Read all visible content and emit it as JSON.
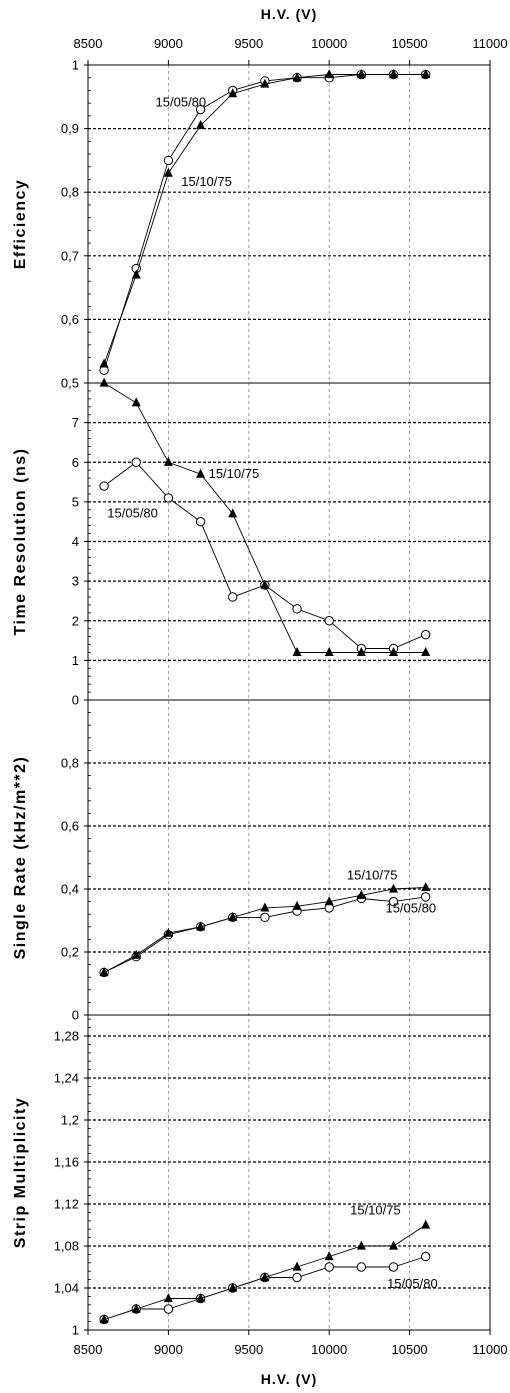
{
  "chart_data": {
    "type": "line",
    "x_axis": {
      "title": "H.V.   (V)",
      "range": [
        8500,
        11000
      ],
      "ticks": [
        "8500",
        "9000",
        "9500",
        "10000",
        "10500",
        "11000"
      ]
    },
    "panels": [
      {
        "id": "efficiency",
        "ylabel": "Efficiency",
        "ylim": [
          0.5,
          1.0
        ],
        "yticks": [
          "0,5",
          "0,6",
          "0,7",
          "0,8",
          "0,9",
          "1"
        ],
        "ytick_values": [
          0.5,
          0.6,
          0.7,
          0.8,
          0.9,
          1.0
        ],
        "series": [
          {
            "name": "15/05/80",
            "marker": "circle",
            "x": [
              8600,
              8800,
              9000,
              9200,
              9400,
              9600,
              9800,
              10000,
              10200,
              10400,
              10600
            ],
            "y": [
              0.52,
              0.68,
              0.85,
              0.93,
              0.96,
              0.975,
              0.98,
              0.98,
              0.985,
              0.985,
              0.985
            ]
          },
          {
            "name": "15/10/75",
            "marker": "triangle",
            "x": [
              8600,
              8800,
              9000,
              9200,
              9400,
              9600,
              9800,
              10000,
              10200,
              10400,
              10600
            ],
            "y": [
              0.53,
              0.67,
              0.83,
              0.905,
              0.955,
              0.97,
              0.98,
              0.985,
              0.985,
              0.985,
              0.985
            ]
          }
        ],
        "annotations": [
          {
            "text": "15/05/80",
            "x": 8920,
            "y": 0.935
          },
          {
            "text": "15/10/75",
            "x": 9080,
            "y": 0.81
          }
        ]
      },
      {
        "id": "time_resolution",
        "ylabel": "Time   Resolution   (ns)",
        "ylim": [
          0,
          8
        ],
        "yticks": [
          "0",
          "1",
          "2",
          "3",
          "4",
          "5",
          "6",
          "7"
        ],
        "ytick_values": [
          0,
          1,
          2,
          3,
          4,
          5,
          6,
          7
        ],
        "series": [
          {
            "name": "15/05/80",
            "marker": "circle",
            "x": [
              8600,
              8800,
              9000,
              9200,
              9400,
              9600,
              9800,
              10000,
              10200,
              10400,
              10600
            ],
            "y": [
              5.4,
              6.0,
              5.1,
              4.5,
              2.6,
              2.9,
              2.3,
              2.0,
              1.3,
              1.3,
              1.65
            ]
          },
          {
            "name": "15/10/75",
            "marker": "triangle",
            "x": [
              8600,
              8800,
              9000,
              9200,
              9400,
              9600,
              9800,
              10000,
              10200,
              10400,
              10600
            ],
            "y": [
              8.0,
              7.5,
              6.0,
              5.7,
              4.7,
              2.9,
              1.2,
              1.2,
              1.2,
              1.2,
              1.2
            ]
          }
        ],
        "annotations": [
          {
            "text": "15/10/75",
            "x": 9250,
            "y": 5.6
          },
          {
            "text": "15/05/80",
            "x": 8620,
            "y": 4.6
          }
        ]
      },
      {
        "id": "single_rate",
        "ylabel": "Single   Rate   (kHz/m**2)",
        "ylim": [
          0,
          1.0
        ],
        "yticks": [
          "0",
          "0,2",
          "0,4",
          "0,6",
          "0,8"
        ],
        "ytick_values": [
          0,
          0.2,
          0.4,
          0.6,
          0.8
        ],
        "series": [
          {
            "name": "15/05/80",
            "marker": "circle",
            "x": [
              8600,
              8800,
              9000,
              9200,
              9400,
              9600,
              9800,
              10000,
              10200,
              10400,
              10600
            ],
            "y": [
              0.135,
              0.185,
              0.255,
              0.28,
              0.31,
              0.31,
              0.33,
              0.34,
              0.37,
              0.36,
              0.375
            ]
          },
          {
            "name": "15/10/75",
            "marker": "triangle",
            "x": [
              8600,
              8800,
              9000,
              9200,
              9400,
              9600,
              9800,
              10000,
              10200,
              10400,
              10600
            ],
            "y": [
              0.135,
              0.19,
              0.26,
              0.28,
              0.31,
              0.34,
              0.345,
              0.36,
              0.38,
              0.4,
              0.405
            ]
          }
        ],
        "annotations": [
          {
            "text": "15/10/75",
            "x": 10110,
            "y": 0.43
          },
          {
            "text": "15/05/80",
            "x": 10350,
            "y": 0.325
          }
        ]
      },
      {
        "id": "strip_multiplicity",
        "ylabel": "Strip   Multiplicity",
        "ylim": [
          1.0,
          1.3
        ],
        "yticks": [
          "1",
          "1,04",
          "1,08",
          "1,12",
          "1,16",
          "1,2",
          "1,24",
          "1,28"
        ],
        "ytick_values": [
          1.0,
          1.04,
          1.08,
          1.12,
          1.16,
          1.2,
          1.24,
          1.28
        ],
        "series": [
          {
            "name": "15/05/80",
            "marker": "circle",
            "x": [
              8600,
              8800,
              9000,
              9200,
              9400,
              9600,
              9800,
              10000,
              10200,
              10400,
              10600
            ],
            "y": [
              1.01,
              1.02,
              1.02,
              1.03,
              1.04,
              1.05,
              1.05,
              1.06,
              1.06,
              1.06,
              1.07
            ]
          },
          {
            "name": "15/10/75",
            "marker": "triangle",
            "x": [
              8600,
              8800,
              9000,
              9200,
              9400,
              9600,
              9800,
              10000,
              10200,
              10400,
              10600
            ],
            "y": [
              1.01,
              1.02,
              1.03,
              1.03,
              1.04,
              1.05,
              1.06,
              1.07,
              1.08,
              1.08,
              1.1
            ]
          }
        ],
        "annotations": [
          {
            "text": "15/10/75",
            "x": 10130,
            "y": 1.11
          },
          {
            "text": "15/05/80",
            "x": 10360,
            "y": 1.04
          }
        ]
      }
    ]
  }
}
